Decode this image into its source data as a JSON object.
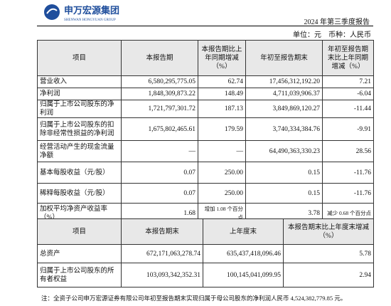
{
  "header": {
    "logo_cn": "申万宏源集团",
    "logo_en": "SHENWAN HONGYUAN GROUP",
    "report": "2024 年第三季度报告",
    "unit": "单位：元　币种：人民币"
  },
  "table1": {
    "columns": [
      "项目",
      "本报告期",
      "本报告期比上年同期增减（%）",
      "年初至报告期末",
      "年初至报告期末比上年同期增减（%）"
    ],
    "rows": [
      [
        "营业收入",
        "6,580,295,775.05",
        "62.74",
        "17,456,312,192.20",
        "7.21"
      ],
      [
        "净利润",
        "1,848,309,873.22",
        "148.49",
        "4,711,039,906.37",
        "-6.04"
      ],
      [
        "归属于上市公司股东的净利润",
        "1,721,797,301.72",
        "187.13",
        "3,849,869,120.27",
        "-11.44"
      ],
      [
        "归属于上市公司股东的扣除非经常性损益的净利润",
        "1,675,802,465.61",
        "179.59",
        "3,740,334,384.76",
        "-9.91"
      ],
      [
        "经营活动产生的现金流量净额",
        "—",
        "—",
        "64,490,363,330.23",
        "28.56"
      ],
      [
        "基本每股收益（元/股）",
        "0.07",
        "250.00",
        "0.15",
        "-11.76"
      ],
      [
        "稀释每股收益（元/股）",
        "0.07",
        "250.00",
        "0.15",
        "-11.76"
      ],
      [
        "加权平均净资产收益率（%）",
        "1.68",
        "增加 1.08 个百分点",
        "3.78",
        "减少 0.68 个百分点"
      ]
    ]
  },
  "table2": {
    "columns": [
      "项目",
      "本报告期末",
      "上年度末",
      "本报告期末比上年度末增减（%）"
    ],
    "rows": [
      [
        "总资产",
        "672,171,063,278.74",
        "635,437,418,096.46",
        "5.78"
      ],
      [
        "归属于上市公司股东的所有者权益",
        "103,093,342,352.31",
        "100,145,041,099.95",
        "2.94"
      ]
    ]
  },
  "note": "注：全资子公司申万宏源证券有限公司年初至报告期末实现归属于母公司股东的净利润人民币 4,524,382,779.85 元。"
}
